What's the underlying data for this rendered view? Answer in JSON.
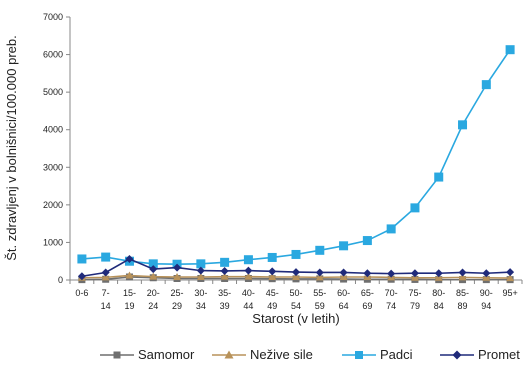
{
  "chart_data": {
    "type": "line",
    "title": "",
    "xlabel": "Starost (v letih)",
    "ylabel": "Št. zdravljenj v bolnišnici/100.000 preb.",
    "ylim": [
      0,
      7000
    ],
    "yticks": [
      "0",
      "1000",
      "2000",
      "3000",
      "4000",
      "5000",
      "6000",
      "7000"
    ],
    "grid": false,
    "legend_position": "bottom",
    "categories": [
      [
        "0-6"
      ],
      [
        "7-",
        "14"
      ],
      [
        "15-",
        "19"
      ],
      [
        "20-",
        "24"
      ],
      [
        "25-",
        "29"
      ],
      [
        "30-",
        "34"
      ],
      [
        "35-",
        "39"
      ],
      [
        "40-",
        "44"
      ],
      [
        "45-",
        "49"
      ],
      [
        "50-",
        "54"
      ],
      [
        "55-",
        "59"
      ],
      [
        "60-",
        "64"
      ],
      [
        "65-",
        "69"
      ],
      [
        "70-",
        "74"
      ],
      [
        "75-",
        "79"
      ],
      [
        "80-",
        "84"
      ],
      [
        "85-",
        "89"
      ],
      [
        "90-",
        "94"
      ],
      [
        "95+"
      ]
    ],
    "series": [
      {
        "name": "Samomor",
        "color": "#6f6f6f",
        "marker": "square",
        "values": [
          10,
          20,
          80,
          60,
          40,
          40,
          40,
          40,
          35,
          30,
          30,
          25,
          20,
          20,
          15,
          10,
          10,
          10,
          10
        ]
      },
      {
        "name": "Nežive sile",
        "color": "#b8925a",
        "marker": "triangle",
        "values": [
          60,
          70,
          120,
          90,
          80,
          80,
          90,
          90,
          80,
          80,
          70,
          80,
          80,
          70,
          60,
          60,
          70,
          60,
          50
        ]
      },
      {
        "name": "Padci",
        "color": "#2aa8e0",
        "marker": "square",
        "values": [
          560,
          610,
          500,
          430,
          420,
          430,
          470,
          540,
          600,
          680,
          790,
          910,
          1050,
          1360,
          1920,
          2740,
          4130,
          5200,
          6130
        ]
      },
      {
        "name": "Promet",
        "color": "#1f2a7a",
        "marker": "diamond",
        "values": [
          100,
          200,
          560,
          290,
          330,
          250,
          240,
          250,
          230,
          210,
          200,
          200,
          180,
          170,
          180,
          180,
          200,
          180,
          210
        ]
      }
    ]
  }
}
